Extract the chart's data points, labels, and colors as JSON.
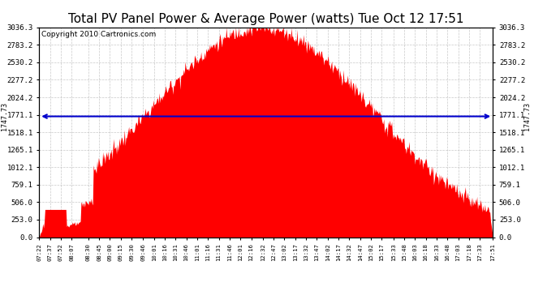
{
  "title": "Total PV Panel Power & Average Power (watts) Tue Oct 12 17:51",
  "copyright": "Copyright 2010 Cartronics.com",
  "average_power": 1747.73,
  "yticks": [
    0.0,
    253.0,
    506.0,
    759.1,
    1012.1,
    1265.1,
    1518.1,
    1771.1,
    2024.2,
    2277.2,
    2530.2,
    2783.2,
    3036.3
  ],
  "ymax": 3036.3,
  "ymin": 0.0,
  "bar_color": "#FF0000",
  "avg_line_color": "#0000CD",
  "background_color": "#FFFFFF",
  "plot_bg_color": "#FFFFFF",
  "grid_color": "#BBBBBB",
  "title_fontsize": 11,
  "copyright_fontsize": 6.5,
  "tick_fontsize": 6.5,
  "x_times": [
    "07:22",
    "07:37",
    "07:52",
    "08:07",
    "08:30",
    "08:45",
    "09:00",
    "09:15",
    "09:30",
    "09:46",
    "10:01",
    "10:16",
    "10:31",
    "10:46",
    "11:01",
    "11:16",
    "11:31",
    "11:46",
    "12:01",
    "12:16",
    "12:32",
    "12:47",
    "13:02",
    "13:17",
    "13:32",
    "13:47",
    "14:02",
    "14:17",
    "14:32",
    "14:47",
    "15:02",
    "15:17",
    "15:33",
    "15:48",
    "16:03",
    "16:18",
    "16:33",
    "16:48",
    "17:03",
    "17:18",
    "17:33",
    "17:51"
  ],
  "start_time": "07:22",
  "end_time": "17:51",
  "avg_label": "1747.73"
}
